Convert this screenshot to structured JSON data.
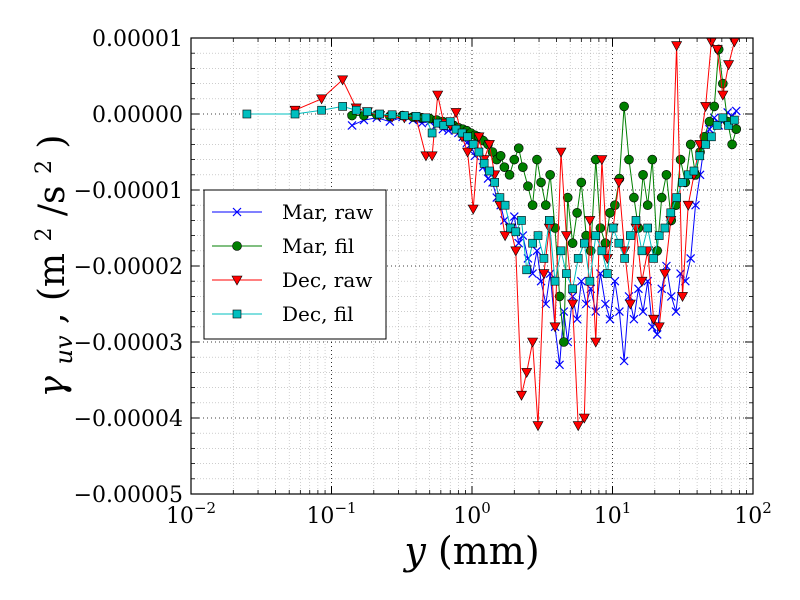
{
  "chart_data": {
    "type": "line",
    "xscale": "log",
    "xlim": [
      0.01,
      100
    ],
    "ylim": [
      -5e-05,
      1e-05
    ],
    "xlabel": {
      "sym": "y",
      "unit": "(mm)"
    },
    "ylabel": {
      "sym": "γ",
      "sub": "uv",
      "mid": ", (m",
      "sup1": "2",
      "mid2": "/s",
      "sup2": "2",
      "end": ")"
    },
    "x_ticks": [
      {
        "value": 0.01,
        "base": "10",
        "exp": "−2"
      },
      {
        "value": 0.1,
        "base": "10",
        "exp": "−1"
      },
      {
        "value": 1,
        "base": "10",
        "exp": "0"
      },
      {
        "value": 10,
        "base": "10",
        "exp": "1"
      },
      {
        "value": 100,
        "base": "10",
        "exp": "2"
      }
    ],
    "y_ticks": [
      {
        "value": 1e-05,
        "label": "0.00001"
      },
      {
        "value": 0,
        "label": "0.00000"
      },
      {
        "value": -1e-05,
        "label": "−0.00001"
      },
      {
        "value": -2e-05,
        "label": "−0.00002"
      },
      {
        "value": -3e-05,
        "label": "−0.00003"
      },
      {
        "value": -4e-05,
        "label": "−0.00004"
      },
      {
        "value": -5e-05,
        "label": "−0.00005"
      }
    ],
    "grid": true,
    "legend_position": "center-left",
    "series": [
      {
        "name": "Mar, raw",
        "color": "#0000ff",
        "marker": "x",
        "x": [
          0.14,
          0.17,
          0.21,
          0.26,
          0.32,
          0.38,
          0.44,
          0.5,
          0.56,
          0.62,
          0.68,
          0.74,
          0.8,
          0.86,
          0.92,
          0.98,
          1.05,
          1.12,
          1.2,
          1.3,
          1.4,
          1.5,
          1.6,
          1.7,
          1.85,
          2.0,
          2.15,
          2.3,
          2.5,
          2.7,
          2.9,
          3.1,
          3.35,
          3.6,
          3.9,
          4.2,
          4.5,
          4.8,
          5.2,
          5.6,
          6.0,
          6.5,
          7.0,
          7.6,
          8.2,
          8.9,
          9.6,
          10.4,
          11.2,
          12.1,
          13.1,
          14.2,
          15.3,
          16.5,
          17.8,
          19.2,
          20.8,
          22.4,
          24.2,
          26.2,
          28.3,
          30.5,
          33,
          36,
          39,
          42,
          45,
          49,
          53,
          57,
          61,
          66,
          71,
          76
        ],
        "y": [
          -1.5e-06,
          -8e-07,
          -5e-07,
          -1e-06,
          -4e-07,
          -8e-07,
          -1.2e-06,
          -1e-06,
          -1.4e-06,
          -2e-06,
          -2.2e-06,
          -1.8e-06,
          -2.5e-06,
          -3e-06,
          -3.8e-06,
          -4e-06,
          -5.5e-06,
          -5e-06,
          -7e-06,
          -8.5e-06,
          -9e-06,
          -1.1e-05,
          -1.2e-05,
          -1.4e-05,
          -1.5e-05,
          -1.35e-05,
          -1.7e-05,
          -1.6e-05,
          -1.9e-05,
          -2.1e-05,
          -1.8e-05,
          -2.2e-05,
          -2.5e-05,
          -2.1e-05,
          -2.8e-05,
          -3.3e-05,
          -2.6e-05,
          -3e-05,
          -2.4e-05,
          -2.7e-05,
          -2.2e-05,
          -2.5e-05,
          -2.3e-05,
          -2.6e-05,
          -2.1e-05,
          -2.5e-05,
          -2.7e-05,
          -2.2e-05,
          -2.6e-05,
          -3.25e-05,
          -2.4e-05,
          -2.7e-05,
          -2.3e-05,
          -2.6e-05,
          -2.2e-05,
          -2.8e-05,
          -2.9e-05,
          -2.3e-05,
          -2e-05,
          -2.4e-05,
          -2.6e-05,
          -2.1e-05,
          -2.2e-05,
          -1.9e-05,
          -1.2e-05,
          -8e-06,
          -4e-06,
          -2e-06,
          -5e-07,
          -1.5e-06,
          -1e-06,
          2e-07,
          -3e-07,
          4e-07
        ]
      },
      {
        "name": "Mar, fil",
        "color": "#007f00",
        "marker": "o",
        "x": [
          0.14,
          0.17,
          0.21,
          0.26,
          0.32,
          0.38,
          0.44,
          0.5,
          0.56,
          0.62,
          0.68,
          0.74,
          0.8,
          0.86,
          0.92,
          0.98,
          1.05,
          1.12,
          1.2,
          1.3,
          1.4,
          1.5,
          1.6,
          1.7,
          1.85,
          2.0,
          2.15,
          2.3,
          2.5,
          2.7,
          2.9,
          3.1,
          3.35,
          3.6,
          3.9,
          4.2,
          4.5,
          4.8,
          5.2,
          5.6,
          6.0,
          6.5,
          7.0,
          7.6,
          8.2,
          8.9,
          9.6,
          10.4,
          11.2,
          12.1,
          13.1,
          14.2,
          15.3,
          16.5,
          17.8,
          19.2,
          20.8,
          22.4,
          24.2,
          26.2,
          28.3,
          30.5,
          33,
          36,
          39,
          42,
          45,
          49,
          53,
          57,
          61,
          66,
          71,
          76
        ],
        "y": [
          -2e-07,
          -2e-07,
          -1e-07,
          -3e-07,
          -2e-07,
          -4e-07,
          -5e-07,
          -6e-07,
          -8e-07,
          -1e-06,
          -1.2e-06,
          -1.5e-06,
          -1.8e-06,
          -2e-06,
          -2.2e-06,
          -2.5e-06,
          -2.8e-06,
          -3e-06,
          -3.5e-06,
          -4e-06,
          -5e-06,
          -6e-06,
          -5.5e-06,
          -7e-06,
          -8e-06,
          -6e-06,
          -4.5e-06,
          -7e-06,
          -9.5e-06,
          -1.2e-05,
          -6e-06,
          -9e-06,
          -1.2e-05,
          -8e-06,
          -1.5e-05,
          -2.4e-05,
          -3e-05,
          -1.1e-05,
          -1.7e-05,
          -1.3e-05,
          -9e-06,
          -1.6e-05,
          -1.8e-05,
          -6e-06,
          -1.5e-05,
          -1.7e-05,
          -1.3e-05,
          -1.2e-05,
          -8.5e-06,
          1e-06,
          -6e-06,
          -1.1e-05,
          -1.5e-05,
          -8e-06,
          -1.2e-05,
          -6e-06,
          -1.8e-05,
          -1.1e-05,
          -8e-06,
          -1.4e-05,
          -1.2e-05,
          -6e-06,
          -9e-06,
          -4e-06,
          -8e-06,
          -5e-06,
          -3e-06,
          -1e-06,
          1e-06,
          8.5e-06,
          4e-06,
          -1e-06,
          -4e-06,
          -2e-06
        ]
      },
      {
        "name": "Dec, raw",
        "color": "#ff0000",
        "marker": "v",
        "x": [
          0.055,
          0.085,
          0.12,
          0.15,
          0.18,
          0.22,
          0.27,
          0.33,
          0.4,
          0.47,
          0.52,
          0.57,
          0.63,
          0.7,
          0.77,
          0.85,
          0.93,
          1.02,
          1.12,
          1.22,
          1.33,
          1.45,
          1.58,
          1.72,
          1.88,
          2.05,
          2.25,
          2.45,
          2.7,
          2.95,
          3.25,
          3.55,
          3.9,
          4.3,
          4.7,
          5.2,
          5.7,
          6.3,
          6.9,
          7.6,
          8.4,
          9.2,
          10.1,
          11.1,
          12.2,
          13.4,
          14.7,
          16.2,
          17.8,
          19.6,
          21.5,
          23.6,
          26,
          28.6,
          31.5,
          34.6,
          38,
          41.8,
          46,
          50.6,
          55.6,
          61,
          67,
          73.7
        ],
        "y": [
          5e-07,
          2e-06,
          4.5e-06,
          8e-07,
          3e-07,
          -2e-07,
          -4e-07,
          -5e-07,
          -5e-07,
          -5.5e-06,
          -5.5e-06,
          2.5e-06,
          -1.2e-06,
          -1.5e-06,
          2e-07,
          -3e-06,
          -5e-06,
          -1.25e-05,
          -3e-06,
          -6e-06,
          -4e-06,
          -8e-06,
          -1.2e-05,
          -1.6e-05,
          -1.5e-05,
          -1.8e-05,
          -3.7e-05,
          -3.4e-05,
          -3e-05,
          -4.1e-05,
          -2.1e-05,
          -1.5e-05,
          -2.8e-05,
          -5e-06,
          -1.6e-05,
          -2.5e-05,
          -4.1e-05,
          -4e-05,
          -1.4e-05,
          -3e-05,
          -6e-06,
          -1.9e-05,
          -1.5e-05,
          -9e-06,
          -1.8e-05,
          -2.5e-05,
          -1.5e-05,
          -2.2e-05,
          -1.8e-05,
          -2.7e-05,
          -2.8e-05,
          -2.1e-05,
          -1.4e-05,
          9e-06,
          -2.4e-05,
          -1.2e-05,
          -8e-06,
          -4e-06,
          1e-06,
          9.5e-06,
          8.5e-06,
          2.5e-06,
          6.5e-06,
          9.5e-06
        ]
      },
      {
        "name": "Dec, fil",
        "color": "#00bfbf",
        "marker": "s",
        "x": [
          0.025,
          0.055,
          0.085,
          0.12,
          0.15,
          0.18,
          0.22,
          0.27,
          0.33,
          0.4,
          0.47,
          0.52,
          0.57,
          0.63,
          0.7,
          0.77,
          0.85,
          0.93,
          1.02,
          1.12,
          1.22,
          1.33,
          1.45,
          1.58,
          1.72,
          1.88,
          2.05,
          2.25,
          2.45,
          2.7,
          2.95,
          3.25,
          3.55,
          3.9,
          4.3,
          4.7,
          5.2,
          5.7,
          6.3,
          6.9,
          7.6,
          8.4,
          9.2,
          10.1,
          11.1,
          12.2,
          13.4,
          14.7,
          16.2,
          17.8,
          19.6,
          21.5,
          23.6,
          26,
          28.6,
          31.5,
          34.6,
          38,
          41.8,
          46,
          50.6,
          55.6,
          61,
          67,
          73.7
        ],
        "y": [
          0.0,
          0.0,
          5e-07,
          1e-06,
          5e-07,
          3e-07,
          0.0,
          -1e-07,
          -2e-07,
          -3e-07,
          -5e-07,
          -2.5e-06,
          -1.2e-06,
          -1.5e-06,
          -1e-06,
          -2e-06,
          -2.5e-06,
          -3e-06,
          -4e-06,
          -5e-06,
          -6.5e-06,
          -7.5e-06,
          -9e-06,
          -1.1e-05,
          -1.2e-05,
          -1.5e-05,
          -1.55e-05,
          -1.4e-05,
          -2.05e-05,
          -1.7e-05,
          -1.6e-05,
          -1.9e-05,
          -1.4e-05,
          -2.2e-05,
          -1.8e-05,
          -2.1e-05,
          -2.3e-05,
          -1.9e-05,
          -1.7e-05,
          -2.2e-05,
          -1.6e-05,
          -1.8e-05,
          -2.1e-05,
          -1.5e-05,
          -1.7e-05,
          -1.9e-05,
          -1.6e-05,
          -1.4e-05,
          -1.8e-05,
          -1.5e-05,
          -1.9e-05,
          -1.6e-05,
          -1.5e-05,
          -1.3e-05,
          -1.1e-05,
          -9e-06,
          -8e-06,
          -7.5e-06,
          -5.5e-06,
          -4e-06,
          -3e-06,
          -1.5e-06,
          -5e-07,
          -1.5e-06,
          -8e-07
        ]
      }
    ]
  }
}
